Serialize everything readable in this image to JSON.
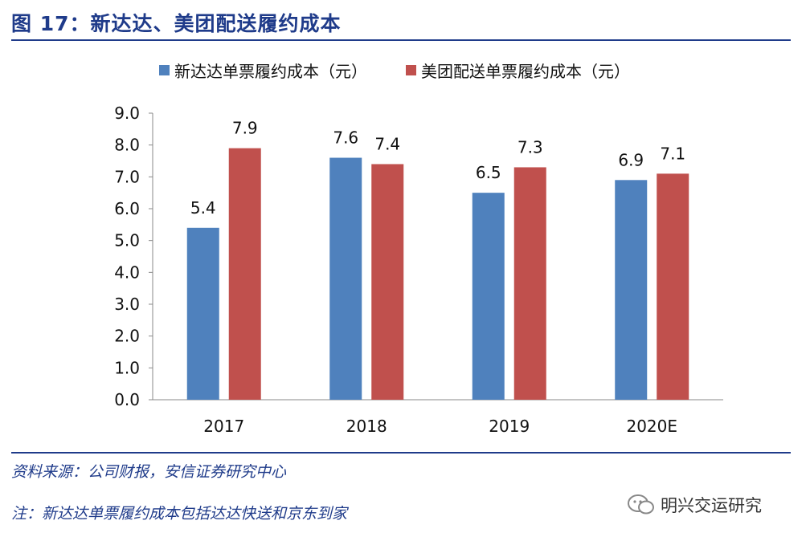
{
  "figure": {
    "title": "图 17：新达达、美团配送履约成本"
  },
  "footer": {
    "source": "资料来源：公司财报，安信证券研究中心",
    "note": "注：新达达单票履约成本包括达达快送和京东到家",
    "watermark": "明兴交运研究"
  },
  "chart_data": {
    "type": "bar",
    "categories": [
      "2017",
      "2018",
      "2019",
      "2020E"
    ],
    "series": [
      {
        "name": "新达达单票履约成本（元）",
        "color": "#4f81bd",
        "values": [
          5.4,
          7.6,
          6.5,
          6.9
        ],
        "labels": [
          "5.4",
          "7.6",
          "6.5",
          "6.9"
        ]
      },
      {
        "name": "美团配送单票履约成本（元）",
        "color": "#c0504d",
        "values": [
          7.9,
          7.4,
          7.3,
          7.1
        ],
        "labels": [
          "7.9",
          "7.4",
          "7.3",
          "7.1"
        ]
      }
    ],
    "yticks": [
      "0.0",
      "1.0",
      "2.0",
      "3.0",
      "4.0",
      "5.0",
      "6.0",
      "7.0",
      "8.0",
      "9.0"
    ],
    "ylim": [
      0,
      9
    ],
    "grid": false,
    "legend": "top"
  }
}
